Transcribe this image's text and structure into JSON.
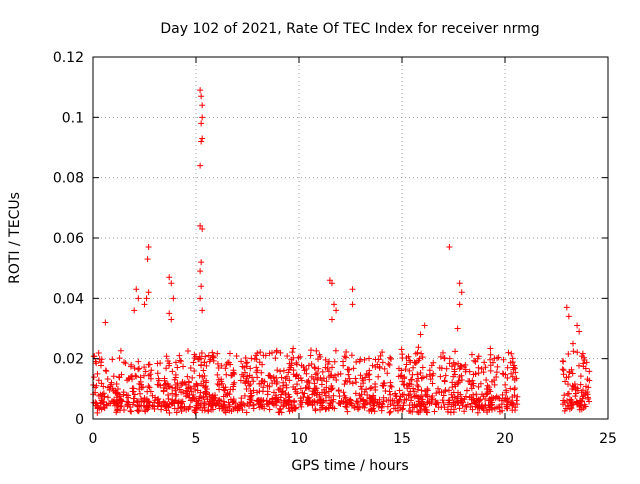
{
  "chart_data": {
    "type": "scatter",
    "title": "Day 102 of 2021, Rate Of TEC Index for receiver nrmg",
    "xlabel": "GPS time / hours",
    "ylabel": "ROTI / TECUs",
    "xlim": [
      0,
      25
    ],
    "ylim": [
      0,
      0.12
    ],
    "xticks": [
      0,
      5,
      10,
      15,
      20,
      25
    ],
    "xtick_labels": [
      "0",
      "5",
      "10",
      "15",
      "20",
      "25"
    ],
    "yticks": [
      0,
      0.02,
      0.04,
      0.06,
      0.08,
      0.1,
      0.12
    ],
    "ytick_labels": [
      "0",
      "0.02",
      "0.04",
      "0.06",
      "0.08",
      "0.1",
      "0.12"
    ],
    "grid": true,
    "marker": "+",
    "series": [
      {
        "name": "ROTI",
        "color": "#ff0000",
        "coverage_hours": [
          [
            0,
            20.6
          ],
          [
            22.8,
            24.1
          ]
        ],
        "typical_range": [
          0.002,
          0.02
        ],
        "notable_points": [
          {
            "x": 5.2,
            "y": 0.109
          },
          {
            "x": 5.25,
            "y": 0.107
          },
          {
            "x": 5.3,
            "y": 0.104
          },
          {
            "x": 5.3,
            "y": 0.1
          },
          {
            "x": 5.25,
            "y": 0.098
          },
          {
            "x": 5.3,
            "y": 0.093
          },
          {
            "x": 5.25,
            "y": 0.092
          },
          {
            "x": 5.2,
            "y": 0.084
          },
          {
            "x": 5.2,
            "y": 0.064
          },
          {
            "x": 5.3,
            "y": 0.063
          },
          {
            "x": 5.25,
            "y": 0.052
          },
          {
            "x": 5.2,
            "y": 0.049
          },
          {
            "x": 5.25,
            "y": 0.044
          },
          {
            "x": 5.2,
            "y": 0.04
          },
          {
            "x": 5.3,
            "y": 0.036
          },
          {
            "x": 2.7,
            "y": 0.057
          },
          {
            "x": 2.65,
            "y": 0.053
          },
          {
            "x": 2.7,
            "y": 0.042
          },
          {
            "x": 2.6,
            "y": 0.04
          },
          {
            "x": 2.5,
            "y": 0.038
          },
          {
            "x": 2.1,
            "y": 0.043
          },
          {
            "x": 2.2,
            "y": 0.04
          },
          {
            "x": 2.0,
            "y": 0.036
          },
          {
            "x": 3.7,
            "y": 0.047
          },
          {
            "x": 3.8,
            "y": 0.045
          },
          {
            "x": 3.9,
            "y": 0.04
          },
          {
            "x": 3.7,
            "y": 0.035
          },
          {
            "x": 3.8,
            "y": 0.033
          },
          {
            "x": 11.5,
            "y": 0.046
          },
          {
            "x": 11.6,
            "y": 0.045
          },
          {
            "x": 11.7,
            "y": 0.038
          },
          {
            "x": 11.8,
            "y": 0.036
          },
          {
            "x": 11.6,
            "y": 0.033
          },
          {
            "x": 12.6,
            "y": 0.043
          },
          {
            "x": 12.6,
            "y": 0.038
          },
          {
            "x": 17.3,
            "y": 0.057
          },
          {
            "x": 17.8,
            "y": 0.045
          },
          {
            "x": 17.9,
            "y": 0.042
          },
          {
            "x": 17.8,
            "y": 0.038
          },
          {
            "x": 17.7,
            "y": 0.03
          },
          {
            "x": 0.6,
            "y": 0.032
          },
          {
            "x": 16.1,
            "y": 0.031
          },
          {
            "x": 15.9,
            "y": 0.028
          },
          {
            "x": 23.0,
            "y": 0.037
          },
          {
            "x": 23.1,
            "y": 0.034
          },
          {
            "x": 23.5,
            "y": 0.031
          },
          {
            "x": 23.6,
            "y": 0.029
          },
          {
            "x": 23.3,
            "y": 0.025
          }
        ]
      }
    ]
  }
}
